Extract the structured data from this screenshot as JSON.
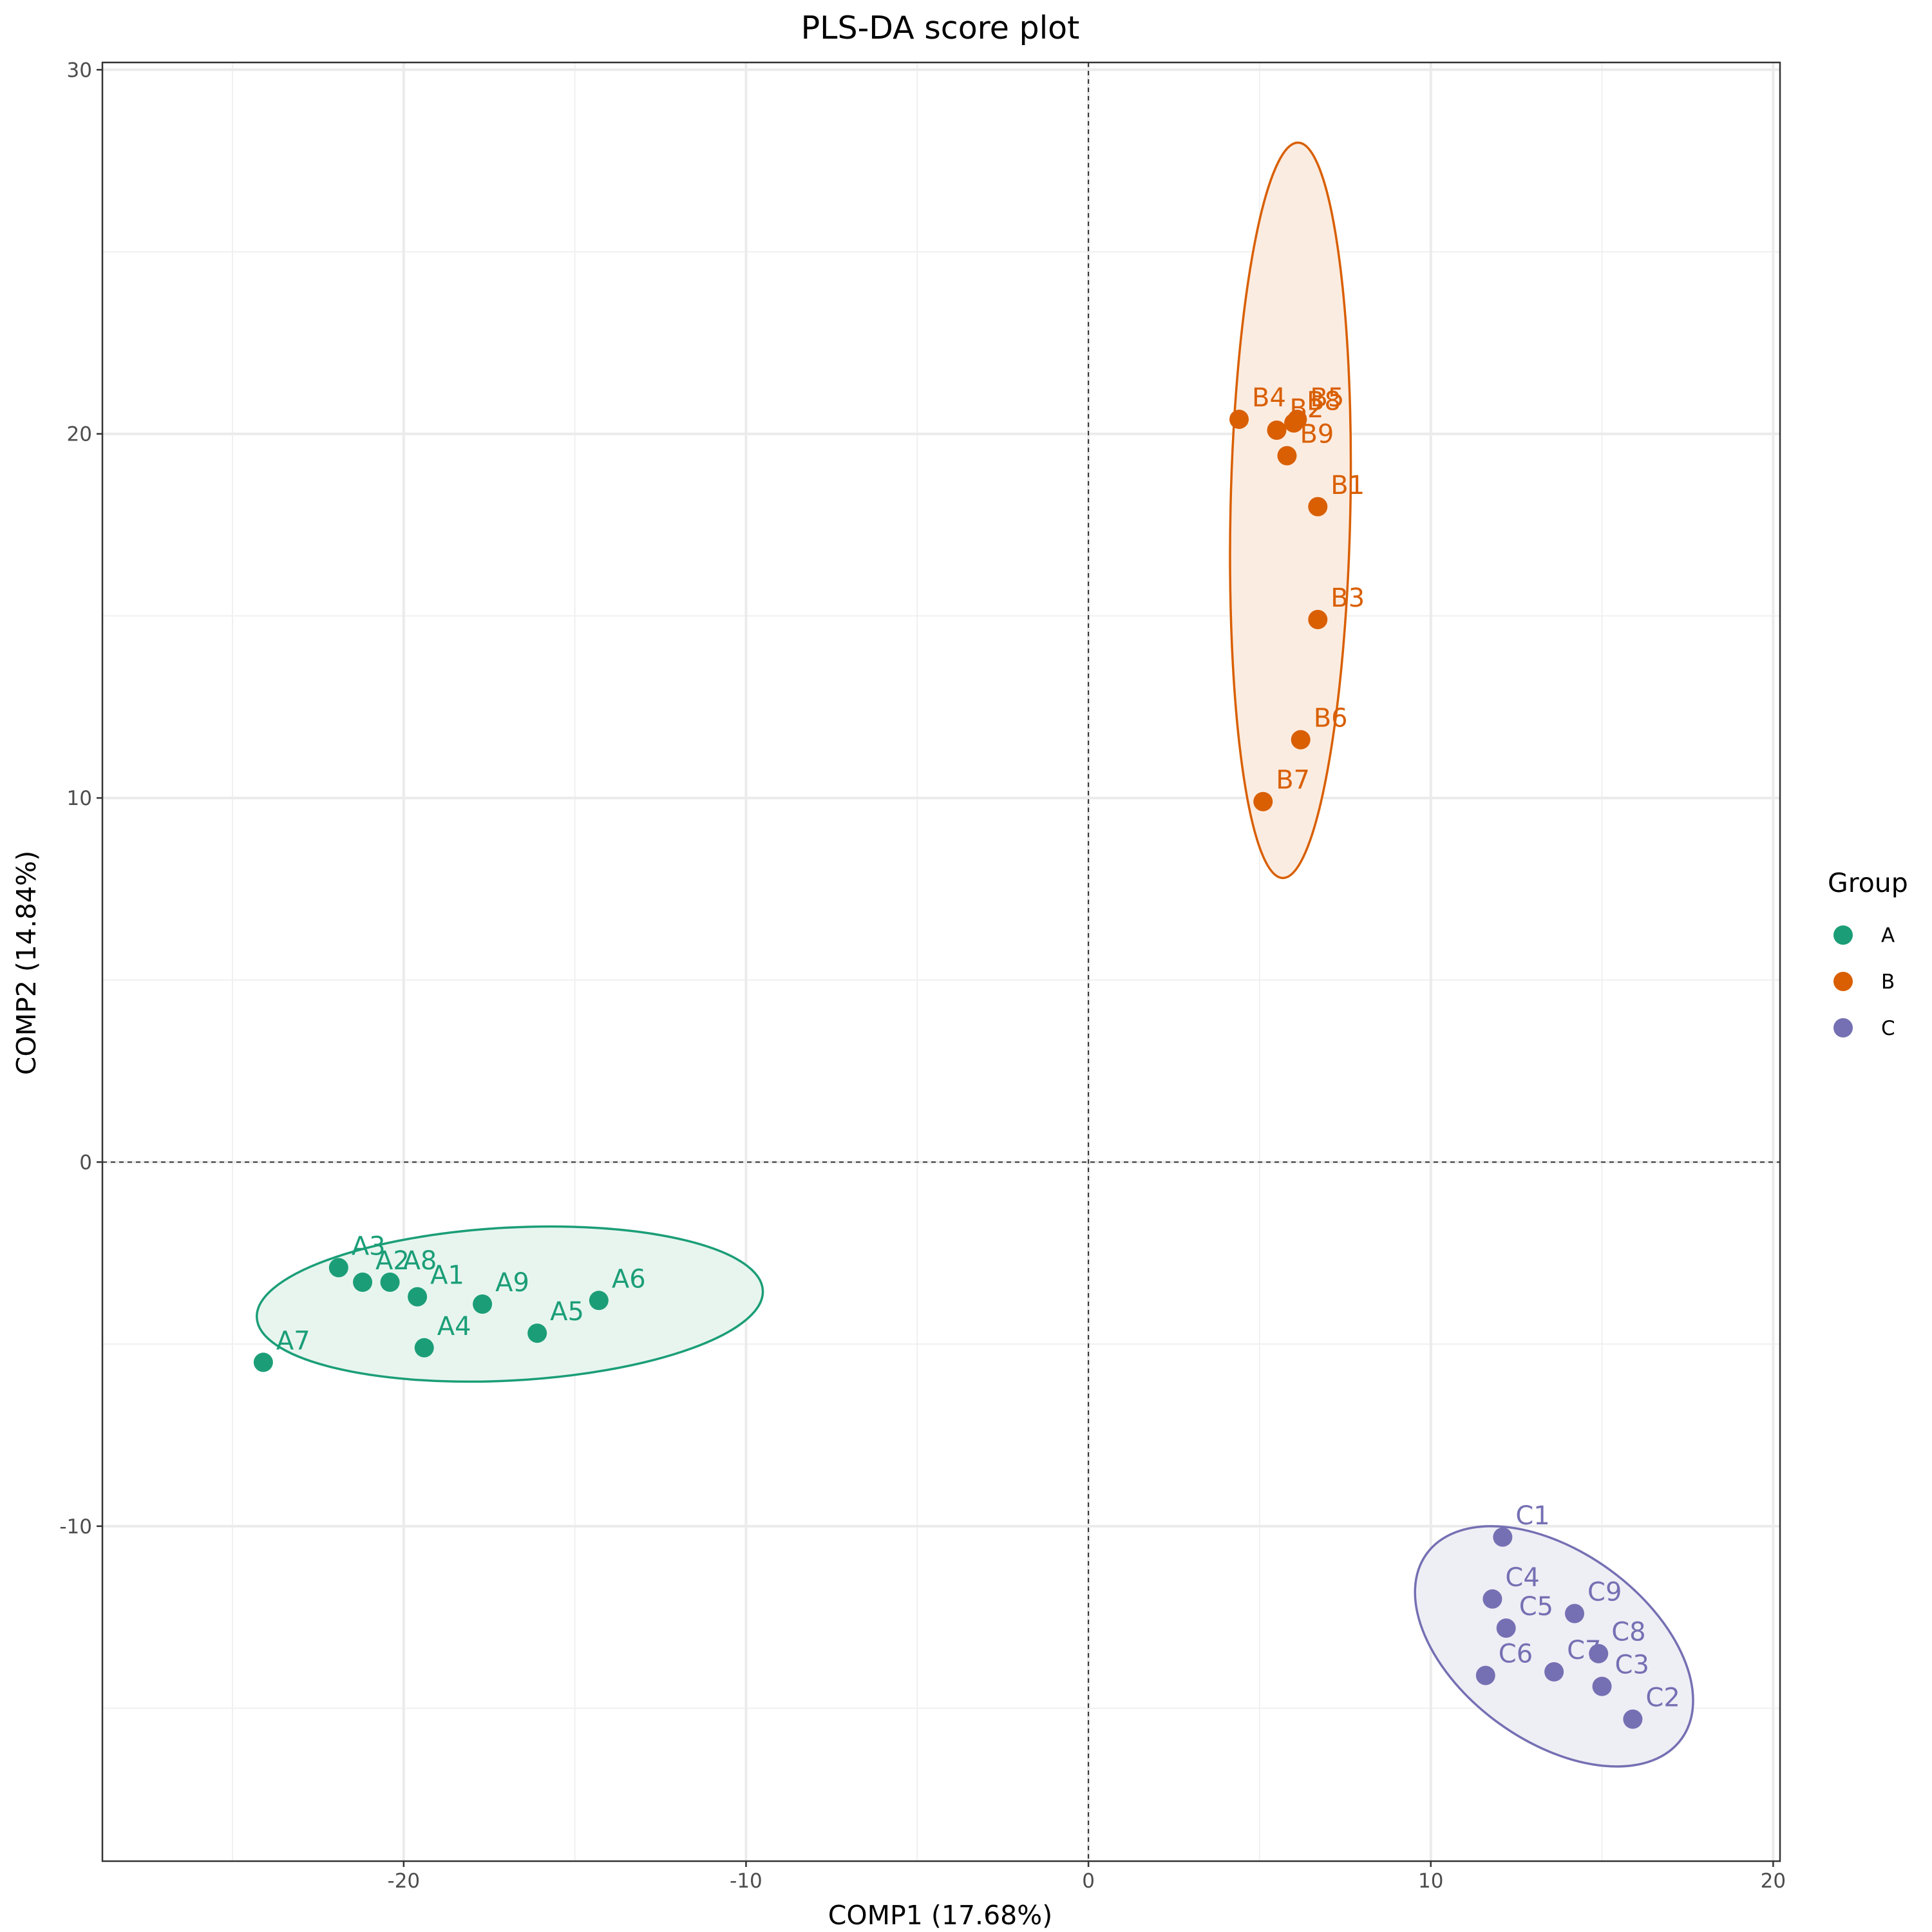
{
  "chart_data": {
    "type": "scatter",
    "title": "PLS-DA score plot",
    "xlabel": "COMP1 (17.68%)",
    "ylabel": "COMP2 (14.84%)",
    "xlim": [
      -28.8,
      20.2
    ],
    "ylim": [
      -19.2,
      30.2
    ],
    "x_ticks": [
      -20,
      -10,
      0,
      10,
      20
    ],
    "x_tick_labels": [
      "-20",
      "-10",
      "0",
      "10",
      "20"
    ],
    "y_ticks": [
      -10,
      0,
      10,
      20,
      30
    ],
    "y_tick_labels": [
      "-10",
      "0",
      "10",
      "20",
      "30"
    ],
    "grid": true,
    "reference_lines": {
      "x": 0,
      "y": 0,
      "style": "dashed"
    },
    "legend": {
      "title": "Group",
      "position": "right"
    },
    "series": [
      {
        "name": "A",
        "color": "#1b9e77",
        "fill": "#e8f5ef",
        "ellipse": {
          "cx": -16.9,
          "cy": -3.9,
          "rx": 7.4,
          "ry": 2.1,
          "angle_deg": -3.1
        },
        "points": [
          {
            "label": "A1",
            "x": -19.6,
            "y": -3.7
          },
          {
            "label": "A2",
            "x": -21.2,
            "y": -3.3
          },
          {
            "label": "A3",
            "x": -21.9,
            "y": -2.9
          },
          {
            "label": "A4",
            "x": -19.4,
            "y": -5.1
          },
          {
            "label": "A5",
            "x": -16.1,
            "y": -4.7
          },
          {
            "label": "A6",
            "x": -14.3,
            "y": -3.8
          },
          {
            "label": "A7",
            "x": -24.1,
            "y": -5.5
          },
          {
            "label": "A8",
            "x": -20.4,
            "y": -3.3
          },
          {
            "label": "A9",
            "x": -17.7,
            "y": -3.9
          }
        ]
      },
      {
        "name": "B",
        "color": "#d95f02",
        "fill": "#fbece1",
        "ellipse": {
          "cx": 5.9,
          "cy": 17.9,
          "rx": 1.75,
          "ry": 10.1,
          "angle_deg": 1.2
        },
        "points": [
          {
            "label": "B1",
            "x": 6.7,
            "y": 18.0
          },
          {
            "label": "B2",
            "x": 5.5,
            "y": 20.1
          },
          {
            "label": "B3",
            "x": 6.7,
            "y": 14.9
          },
          {
            "label": "B4",
            "x": 4.4,
            "y": 20.4
          },
          {
            "label": "B5",
            "x": 6.1,
            "y": 20.4
          },
          {
            "label": "B6",
            "x": 6.2,
            "y": 11.6
          },
          {
            "label": "B7",
            "x": 5.1,
            "y": 9.9
          },
          {
            "label": "B8",
            "x": 6.0,
            "y": 20.3
          },
          {
            "label": "B9",
            "x": 5.8,
            "y": 19.4
          }
        ]
      },
      {
        "name": "C",
        "color": "#7570b3",
        "fill": "#eeeef5",
        "ellipse": {
          "cx": 13.6,
          "cy": -13.3,
          "rx": 4.6,
          "ry": 2.6,
          "angle_deg": 36
        },
        "points": [
          {
            "label": "C1",
            "x": 12.1,
            "y": -10.3
          },
          {
            "label": "C2",
            "x": 15.9,
            "y": -15.3
          },
          {
            "label": "C3",
            "x": 15.0,
            "y": -14.4
          },
          {
            "label": "C4",
            "x": 11.8,
            "y": -12.0
          },
          {
            "label": "C5",
            "x": 12.2,
            "y": -12.8
          },
          {
            "label": "C6",
            "x": 11.6,
            "y": -14.1
          },
          {
            "label": "C7",
            "x": 13.6,
            "y": -14.0
          },
          {
            "label": "C8",
            "x": 14.9,
            "y": -13.5
          },
          {
            "label": "C9",
            "x": 14.2,
            "y": -12.4
          }
        ]
      }
    ]
  }
}
